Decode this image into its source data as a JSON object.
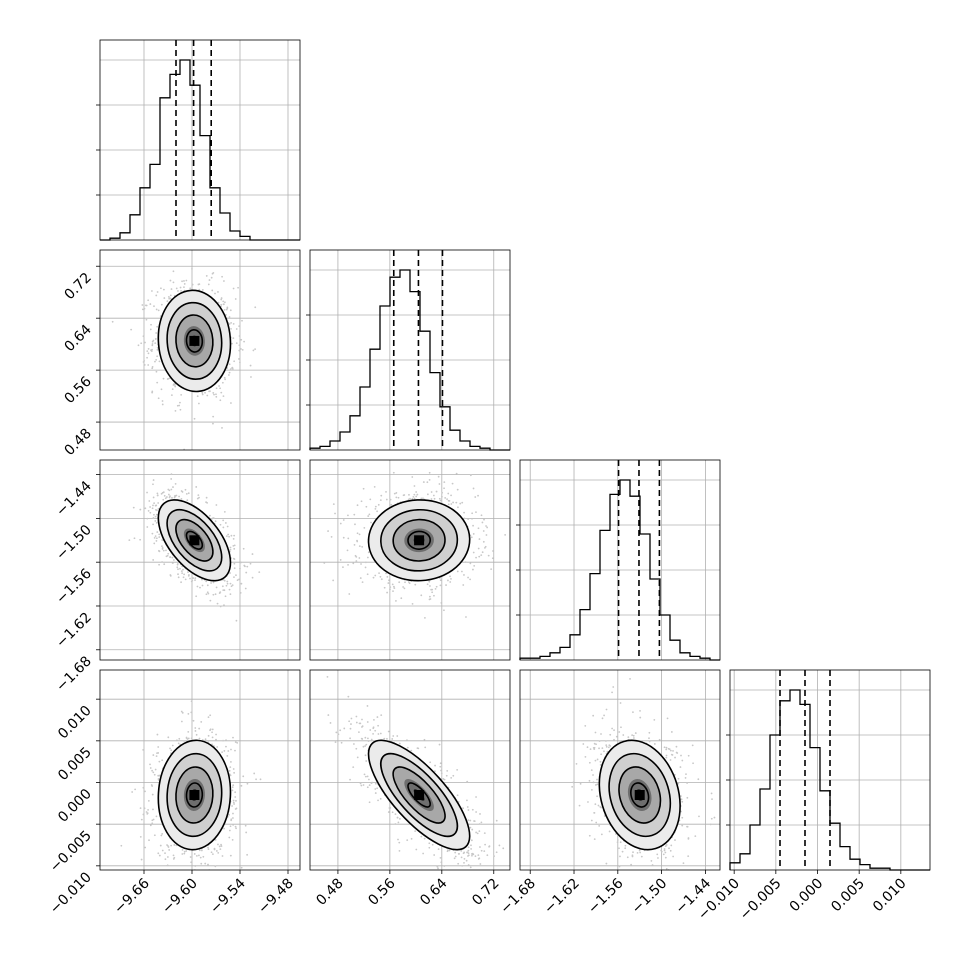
{
  "chart_data": {
    "type": "corner",
    "grid": true,
    "contour_levels": 4,
    "dimensions": [
      {
        "mean": -9.597,
        "sigma": 0.022,
        "range": [
          -9.715,
          -9.465
        ],
        "ticks": [
          "-9.66",
          "-9.60",
          "-9.54",
          "-9.48"
        ],
        "quantiles": [
          -9.62,
          -9.598,
          -9.576
        ]
      },
      {
        "mean": 0.605,
        "sigma": 0.038,
        "range": [
          0.437,
          0.745
        ],
        "ticks": [
          "0.48",
          "0.56",
          "0.64",
          "0.72"
        ],
        "quantiles": [
          0.566,
          0.604,
          0.641
        ]
      },
      {
        "mean": -1.53,
        "sigma": 0.027,
        "range": [
          -1.694,
          -1.42
        ],
        "ticks": [
          "-1.68",
          "-1.62",
          "-1.56",
          "-1.50",
          "-1.44"
        ],
        "quantiles": [
          -1.559,
          -1.531,
          -1.503
        ]
      },
      {
        "mean": -0.0015,
        "sigma": 0.0032,
        "range": [
          -0.0105,
          0.0135
        ],
        "ticks": [
          "-0.010",
          "-0.005",
          "0.000",
          "0.005",
          "0.010"
        ],
        "quantiles": [
          -0.0045,
          -0.0015,
          0.0015
        ]
      }
    ],
    "correlations": [
      {
        "pair": [
          1,
          0
        ],
        "rho": -0.05
      },
      {
        "pair": [
          2,
          0
        ],
        "rho": -0.55
      },
      {
        "pair": [
          2,
          1
        ],
        "rho": 0.02
      },
      {
        "pair": [
          3,
          0
        ],
        "rho": 0.05
      },
      {
        "pair": [
          3,
          1
        ],
        "rho": -0.75
      },
      {
        "pair": [
          3,
          2
        ],
        "rho": -0.2
      }
    ],
    "histograms": [
      [
        0.0,
        0.01,
        0.04,
        0.14,
        0.29,
        0.42,
        0.79,
        0.92,
        1.0,
        0.86,
        0.58,
        0.29,
        0.15,
        0.05,
        0.02,
        0.0,
        0.0,
        0.0,
        0.0,
        0.0
      ],
      [
        0.01,
        0.02,
        0.05,
        0.1,
        0.19,
        0.35,
        0.56,
        0.8,
        0.96,
        1.0,
        0.88,
        0.66,
        0.43,
        0.24,
        0.11,
        0.05,
        0.02,
        0.01,
        0.0,
        0.0
      ],
      [
        0.01,
        0.01,
        0.02,
        0.04,
        0.07,
        0.14,
        0.28,
        0.48,
        0.72,
        0.92,
        1.0,
        0.91,
        0.7,
        0.45,
        0.25,
        0.11,
        0.04,
        0.02,
        0.01,
        0.0
      ],
      [
        0.04,
        0.09,
        0.25,
        0.45,
        0.75,
        0.94,
        1.0,
        0.92,
        0.68,
        0.44,
        0.26,
        0.13,
        0.06,
        0.03,
        0.01,
        0.01,
        0.0,
        0.0,
        0.0,
        0.0
      ]
    ]
  }
}
